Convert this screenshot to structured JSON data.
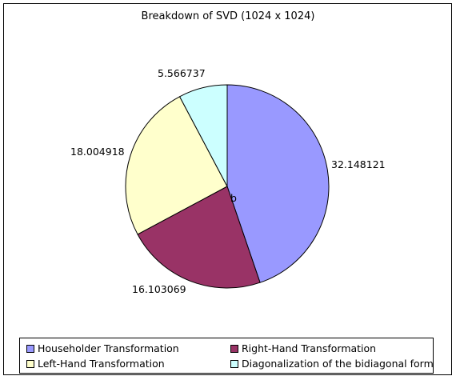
{
  "chart_data": {
    "type": "pie",
    "title": "Breakdown of SVD (1024 x 1024)",
    "center_label": "b",
    "slices": [
      {
        "label": "Householder Transformation",
        "value": 32.148121,
        "value_text": "32.148121",
        "color": "#9999ff"
      },
      {
        "label": "Right-Hand Transformation",
        "value": 16.103069,
        "value_text": "16.103069",
        "color": "#993366"
      },
      {
        "label": "Left-Hand Transformation",
        "value": 18.004918,
        "value_text": "18.004918",
        "color": "#ffffcc"
      },
      {
        "label": "Diagonalization of the bidiagonal form",
        "value": 5.566737,
        "value_text": "5.566737",
        "color": "#ccffff"
      }
    ],
    "legend": {
      "placement": "bottom"
    },
    "start_angle": "top",
    "direction": "clockwise"
  }
}
